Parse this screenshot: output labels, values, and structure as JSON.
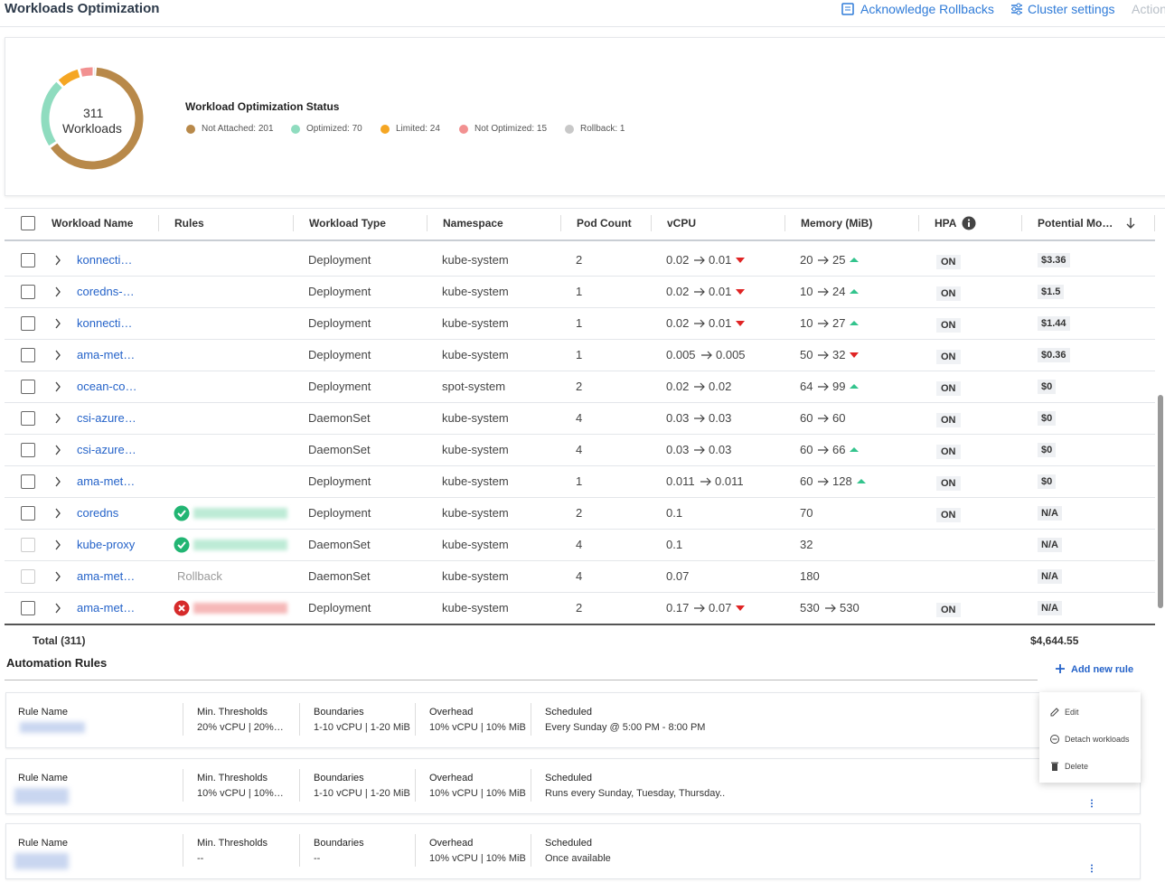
{
  "header": {
    "title": "Workloads Optimization",
    "actions": [
      "Acknowledge Rollbacks",
      "Cluster settings",
      "Actions"
    ]
  },
  "status": {
    "total": "311",
    "total_label": "Workloads",
    "title": "Workload Optimization Status",
    "items": [
      {
        "label": "Not Attached: 201",
        "value": 201,
        "color": "#b8894a"
      },
      {
        "label": "Optimized: 70",
        "value": 70,
        "color": "#8fdcbf"
      },
      {
        "label": "Limited: 24",
        "value": 24,
        "color": "#f5a623"
      },
      {
        "label": "Not Optimized: 15",
        "value": 15,
        "color": "#f29191"
      },
      {
        "label": "Rollback: 1",
        "value": 1,
        "color": "#c8c8c8"
      }
    ]
  },
  "table": {
    "columns": [
      "Workload Name",
      "Rules",
      "Workload Type",
      "Namespace",
      "Pod Count",
      "vCPU",
      "Memory (MiB)",
      "HPA",
      "Potential Mo…"
    ],
    "rows": [
      {
        "name": "konnecti…",
        "rule": null,
        "type": "Deployment",
        "namespace": "kube-system",
        "pods": "2",
        "vcpu": [
          "0.02",
          "0.01"
        ],
        "vcpu_trend": "down",
        "memory": [
          "20",
          "25"
        ],
        "memory_trend": "up",
        "hpa": "ON",
        "savings": "$3.36"
      },
      {
        "name": "coredns-…",
        "rule": null,
        "type": "Deployment",
        "namespace": "kube-system",
        "pods": "1",
        "vcpu": [
          "0.02",
          "0.01"
        ],
        "vcpu_trend": "down",
        "memory": [
          "10",
          "24"
        ],
        "memory_trend": "up",
        "hpa": "ON",
        "savings": "$1.5"
      },
      {
        "name": "konnecti…",
        "rule": null,
        "type": "Deployment",
        "namespace": "kube-system",
        "pods": "1",
        "vcpu": [
          "0.02",
          "0.01"
        ],
        "vcpu_trend": "down",
        "memory": [
          "10",
          "27"
        ],
        "memory_trend": "up",
        "hpa": "ON",
        "savings": "$1.44"
      },
      {
        "name": "ama-met…",
        "rule": null,
        "type": "Deployment",
        "namespace": "kube-system",
        "pods": "1",
        "vcpu": [
          "0.005",
          "0.005"
        ],
        "vcpu_trend": null,
        "memory": [
          "50",
          "32"
        ],
        "memory_trend": "down",
        "hpa": "ON",
        "savings": "$0.36"
      },
      {
        "name": "ocean-co…",
        "rule": null,
        "type": "Deployment",
        "namespace": "spot-system",
        "pods": "2",
        "vcpu": [
          "0.02",
          "0.02"
        ],
        "vcpu_trend": null,
        "memory": [
          "64",
          "99"
        ],
        "memory_trend": "up",
        "hpa": "ON",
        "savings": "$0"
      },
      {
        "name": "csi-azure…",
        "rule": null,
        "type": "DaemonSet",
        "namespace": "kube-system",
        "pods": "4",
        "vcpu": [
          "0.03",
          "0.03"
        ],
        "vcpu_trend": null,
        "memory": [
          "60",
          "60"
        ],
        "memory_trend": null,
        "hpa": "ON",
        "savings": "$0"
      },
      {
        "name": "csi-azure…",
        "rule": null,
        "type": "DaemonSet",
        "namespace": "kube-system",
        "pods": "4",
        "vcpu": [
          "0.03",
          "0.03"
        ],
        "vcpu_trend": null,
        "memory": [
          "60",
          "66"
        ],
        "memory_trend": "up",
        "hpa": "ON",
        "savings": "$0"
      },
      {
        "name": "ama-met…",
        "rule": null,
        "type": "Deployment",
        "namespace": "kube-system",
        "pods": "1",
        "vcpu": [
          "0.011",
          "0.011"
        ],
        "vcpu_trend": null,
        "memory": [
          "60",
          "128"
        ],
        "memory_trend": "up",
        "hpa": "ON",
        "savings": "$0"
      },
      {
        "name": "coredns",
        "rule": {
          "status": "ok"
        },
        "type": "Deployment",
        "namespace": "kube-system",
        "pods": "2",
        "vcpu": [
          "0.1"
        ],
        "vcpu_trend": null,
        "memory": [
          "70"
        ],
        "memory_trend": null,
        "hpa": "ON",
        "savings": "N/A"
      },
      {
        "name": "kube-proxy",
        "rule": {
          "status": "ok"
        },
        "type": "DaemonSet",
        "namespace": "kube-system",
        "pods": "4",
        "vcpu": [
          "0.1"
        ],
        "vcpu_trend": null,
        "memory": [
          "32"
        ],
        "memory_trend": null,
        "hpa": null,
        "savings": "N/A"
      },
      {
        "name": "ama-met…",
        "rule": {
          "text": "Rollback"
        },
        "type": "DaemonSet",
        "namespace": "kube-system",
        "pods": "4",
        "vcpu": [
          "0.07"
        ],
        "vcpu_trend": null,
        "memory": [
          "180"
        ],
        "memory_trend": null,
        "hpa": null,
        "savings": "N/A"
      },
      {
        "name": "ama-met…",
        "rule": {
          "status": "error"
        },
        "type": "Deployment",
        "namespace": "kube-system",
        "pods": "2",
        "vcpu": [
          "0.17",
          "0.07"
        ],
        "vcpu_trend": "down",
        "memory": [
          "530",
          "530"
        ],
        "memory_trend": null,
        "hpa": "ON",
        "savings": "N/A"
      }
    ],
    "total_label": "Total (311)",
    "total_savings": "$4,644.55"
  },
  "automation": {
    "title": "Automation Rules",
    "add": "Add new rule",
    "fields": [
      "Rule Name",
      "Min. Thresholds",
      "Boundaries",
      "Overhead",
      "Scheduled"
    ],
    "rules": [
      [
        "20% vCPU | 20%…",
        "1-10 vCPU | 1-20 MiB",
        "10% vCPU | 10% MiB",
        "Every Sunday @ 5:00 PM - 8:00 PM"
      ],
      [
        "10% vCPU | 10%…",
        "1-10 vCPU | 1-20 MiB",
        "10% vCPU | 10% MiB",
        "Runs every Sunday, Tuesday, Thursday.."
      ],
      [
        "--",
        "--",
        "10% vCPU | 10% MiB",
        "Once available"
      ]
    ],
    "menu": [
      "Edit",
      "Detach workloads",
      "Delete"
    ]
  }
}
